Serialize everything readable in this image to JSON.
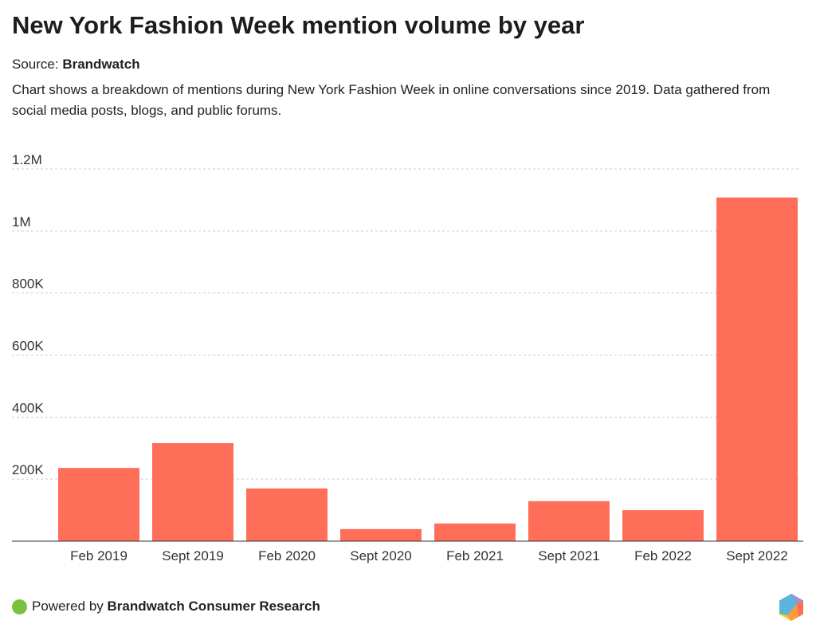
{
  "title": "New York Fashion Week mention volume by year",
  "source_label": "Source: ",
  "source_name": "Brandwatch",
  "description": "Chart shows a breakdown of mentions during New York Fashion Week in online conversations since 2019. Data gathered from social media posts, blogs, and public forums.",
  "footer": {
    "prefix": "Powered by ",
    "brand": "Brandwatch Consumer Research"
  },
  "colors": {
    "bar": "#ff6e59",
    "grid": "#cccccc",
    "axis": "#333333"
  },
  "chart_data": {
    "type": "bar",
    "title": "New York Fashion Week mention volume by year",
    "xlabel": "",
    "ylabel": "",
    "categories": [
      "Feb 2019",
      "Sept 2019",
      "Feb 2020",
      "Sept 2020",
      "Feb 2021",
      "Sept 2021",
      "Feb 2022",
      "Sept 2022"
    ],
    "values": [
      236000,
      316000,
      170000,
      39000,
      57000,
      129000,
      100000,
      1108000
    ],
    "ylim": [
      0,
      1200000
    ],
    "yticks": [
      {
        "v": 200000,
        "label": "200K"
      },
      {
        "v": 400000,
        "label": "400K"
      },
      {
        "v": 600000,
        "label": "600K"
      },
      {
        "v": 800000,
        "label": "800K"
      },
      {
        "v": 1000000,
        "label": "1M"
      },
      {
        "v": 1200000,
        "label": "1.2M"
      }
    ],
    "grid": true,
    "legend": "none"
  }
}
